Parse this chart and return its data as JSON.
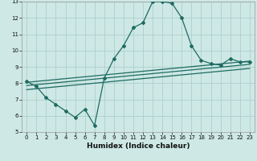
{
  "xlabel": "Humidex (Indice chaleur)",
  "xlim": [
    -0.5,
    23.5
  ],
  "ylim": [
    5,
    13
  ],
  "xticks": [
    0,
    1,
    2,
    3,
    4,
    5,
    6,
    7,
    8,
    9,
    10,
    11,
    12,
    13,
    14,
    15,
    16,
    17,
    18,
    19,
    20,
    21,
    22,
    23
  ],
  "yticks": [
    5,
    6,
    7,
    8,
    9,
    10,
    11,
    12,
    13
  ],
  "bg_color": "#cde8e5",
  "grid_color": "#aed0cc",
  "line_color": "#1f6b62",
  "curve_x": [
    0,
    1,
    2,
    3,
    4,
    5,
    6,
    7,
    8,
    9,
    10,
    11,
    12,
    13,
    14,
    15,
    16,
    17,
    18,
    19,
    20,
    21,
    22,
    23
  ],
  "curve_y": [
    8.1,
    7.8,
    7.1,
    6.7,
    6.3,
    5.9,
    6.4,
    5.4,
    8.3,
    9.5,
    10.3,
    11.4,
    11.7,
    13.0,
    13.0,
    12.9,
    12.0,
    10.3,
    9.4,
    9.2,
    9.1,
    9.5,
    9.3,
    9.3
  ],
  "line1_x": [
    0,
    23
  ],
  "line1_y": [
    7.85,
    9.15
  ],
  "line2_x": [
    0,
    23
  ],
  "line2_y": [
    8.05,
    9.35
  ],
  "line3_x": [
    0,
    23
  ],
  "line3_y": [
    7.6,
    8.9
  ]
}
